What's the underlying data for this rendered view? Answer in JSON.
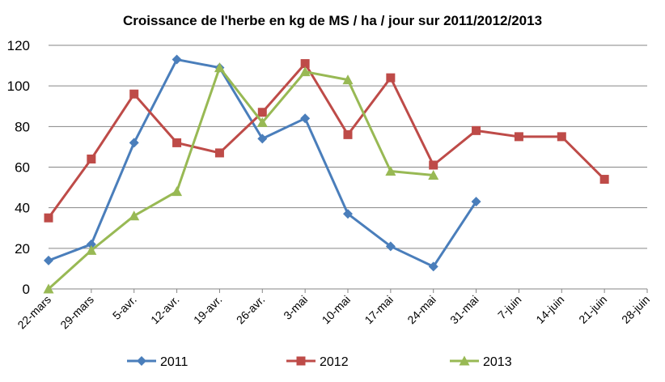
{
  "chart_data": {
    "type": "line",
    "title": "Croissance de l'herbe en kg de MS / ha / jour sur 2011/2012/2013",
    "xlabel": "",
    "ylabel": "",
    "categories": [
      "22-mars",
      "29-mars",
      "5-avr.",
      "12-avr.",
      "19-avr.",
      "26-avr.",
      "3-mai",
      "10-mai",
      "17-mai",
      "24-mai",
      "31-mai",
      "7-juin",
      "14-juin",
      "21-juin",
      "28-juin"
    ],
    "ylim": [
      0,
      120
    ],
    "yticks": [
      "0",
      "20",
      "40",
      "60",
      "80",
      "100",
      "120"
    ],
    "grid": "horizontal",
    "legend_position": "bottom",
    "series": [
      {
        "name": "2011",
        "color": "#4A7EBB",
        "marker": "diamond",
        "values": [
          14,
          22,
          72,
          113,
          109,
          74,
          84,
          37,
          21,
          11,
          43,
          null,
          null,
          null,
          null
        ]
      },
      {
        "name": "2012",
        "color": "#BE4B48",
        "marker": "square",
        "values": [
          35,
          64,
          96,
          72,
          67,
          87,
          111,
          76,
          104,
          61,
          78,
          75,
          75,
          54,
          null
        ]
      },
      {
        "name": "2013",
        "color": "#98B954",
        "marker": "triangle",
        "values": [
          0,
          19,
          36,
          48,
          109,
          82,
          107,
          103,
          58,
          56,
          null,
          null,
          null,
          null,
          null
        ]
      }
    ]
  }
}
